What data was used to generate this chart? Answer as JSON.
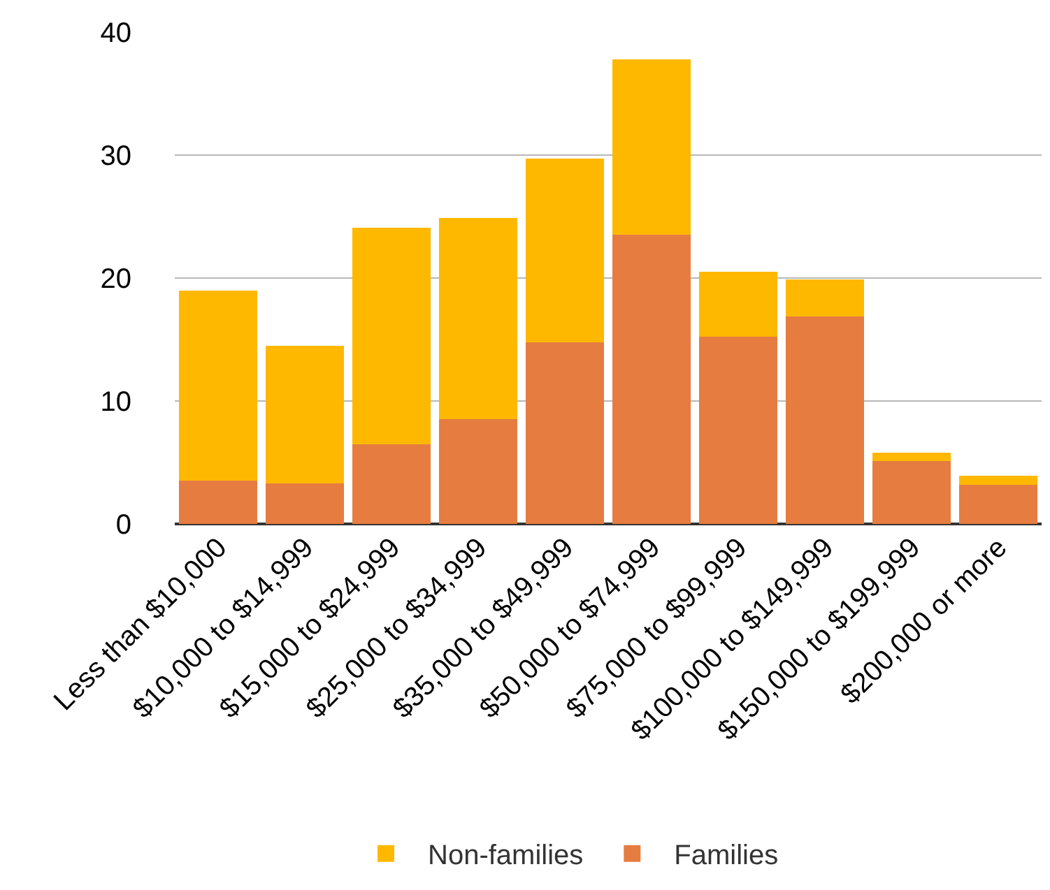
{
  "chart_data": {
    "type": "bar",
    "stacked": true,
    "categories": [
      "Less than $10,000",
      "$10,000 to $14,999",
      "$15,000 to $24,999",
      "$25,000 to $34,999",
      "$35,000 to $49,999",
      "$50,000 to $74,999",
      "$75,000 to $99,999",
      "$100,000 to $149,999",
      "$150,000 to $199,999",
      "$200,000 or more"
    ],
    "series": [
      {
        "name": "Families",
        "color": "#e67c40",
        "values": [
          3.5,
          3.3,
          6.5,
          8.5,
          14.8,
          23.5,
          15.2,
          16.9,
          5.1,
          3.2
        ]
      },
      {
        "name": "Non-families",
        "color": "#ffb800",
        "values": [
          15.5,
          11.2,
          17.6,
          16.4,
          14.9,
          14.3,
          5.3,
          3.0,
          0.7,
          0.7
        ]
      }
    ],
    "ylim": [
      0,
      40
    ],
    "yticks": [
      0,
      10,
      20,
      30,
      40
    ],
    "grid": "y",
    "legend": "bottom"
  }
}
